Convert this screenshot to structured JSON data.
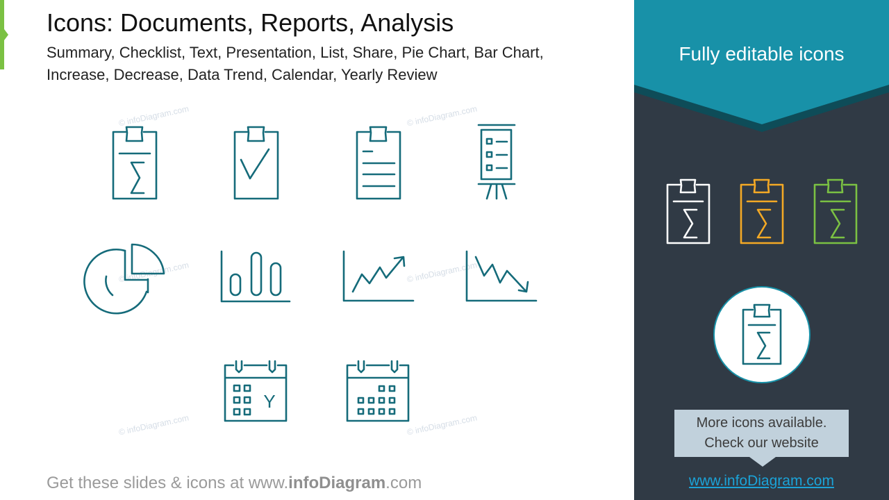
{
  "header": {
    "title": "Icons: Documents, Reports, Analysis",
    "subtitle": "Summary, Checklist, Text, Presentation, List, Share, Pie Chart, Bar Chart, Increase, Decrease, Data Trend, Calendar, Yearly Review"
  },
  "watermark": "© infoDiagram.com",
  "icons": [
    "summary-clipboard",
    "checklist-clipboard",
    "text-clipboard",
    "presentation-board",
    "pie-chart",
    "bar-chart",
    "increase-trend",
    "decrease-trend",
    "yearly-calendar",
    "calendar"
  ],
  "calendar_letter": "Y",
  "footer": {
    "prefix": "Get these slides & icons at www.",
    "brand": "infoDiagram",
    "suffix": ".com"
  },
  "panel": {
    "title": "Fully editable icons",
    "callout_line1": "More icons available.",
    "callout_line2": "Check our website",
    "link": "www.infoDiagram.com"
  },
  "colors": {
    "icon": "#156b7a",
    "banner": "#1891a8",
    "banner_edge": "#0e4c58",
    "panel": "#303a45",
    "white": "#ffffff",
    "orange": "#f4a925",
    "green": "#7bc143",
    "link": "#1ba3d8",
    "accent": "#7bc143"
  }
}
